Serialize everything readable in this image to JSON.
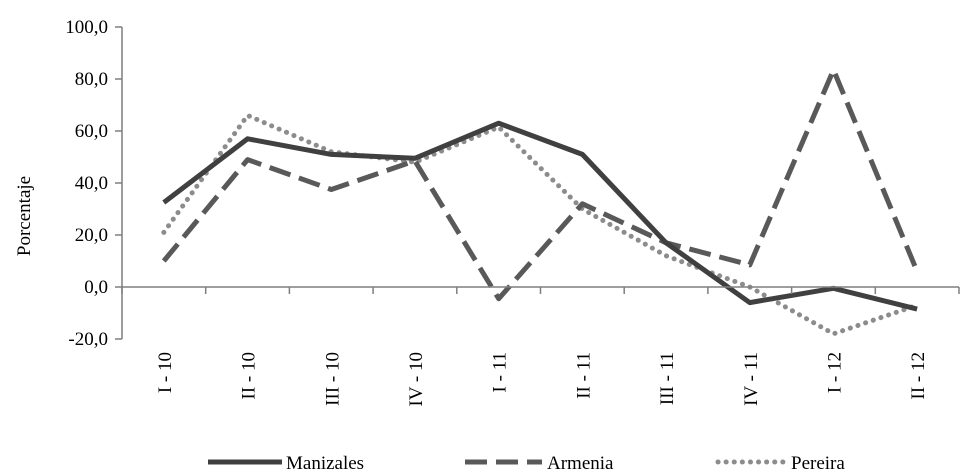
{
  "chart_data": {
    "type": "line",
    "title": "",
    "xlabel": "",
    "ylabel": "Porcentaje",
    "ylim": [
      -20,
      100
    ],
    "yticks": [
      "-20,0",
      "0,0",
      "20,0",
      "40,0",
      "60,0",
      "80,0",
      "100,0"
    ],
    "ytick_values": [
      -20,
      0,
      20,
      40,
      60,
      80,
      100
    ],
    "categories": [
      "I - 10",
      "II - 10",
      "III - 10",
      "IV - 10",
      "I - 11",
      "II - 11",
      "III - 11",
      "IV - 11",
      "I - 12",
      "II - 12"
    ],
    "grid": false,
    "legend_position": "bottom",
    "series": [
      {
        "name": "Manizales",
        "values": [
          32.5,
          57.0,
          51.0,
          49.5,
          63.0,
          51.0,
          17.0,
          -6.0,
          -0.5,
          -8.5
        ],
        "color": "#404040",
        "style": "solid"
      },
      {
        "name": "Armenia",
        "values": [
          10.0,
          49.0,
          37.5,
          48.5,
          -4.5,
          32.0,
          17.0,
          8.5,
          83.5,
          6.0
        ],
        "color": "#595959",
        "style": "dashed"
      },
      {
        "name": "Pereira",
        "values": [
          21.0,
          66.0,
          52.0,
          48.0,
          61.5,
          30.0,
          12.0,
          0.0,
          -18.0,
          -7.0
        ],
        "color": "#8c8c8c",
        "style": "dotted"
      }
    ]
  }
}
